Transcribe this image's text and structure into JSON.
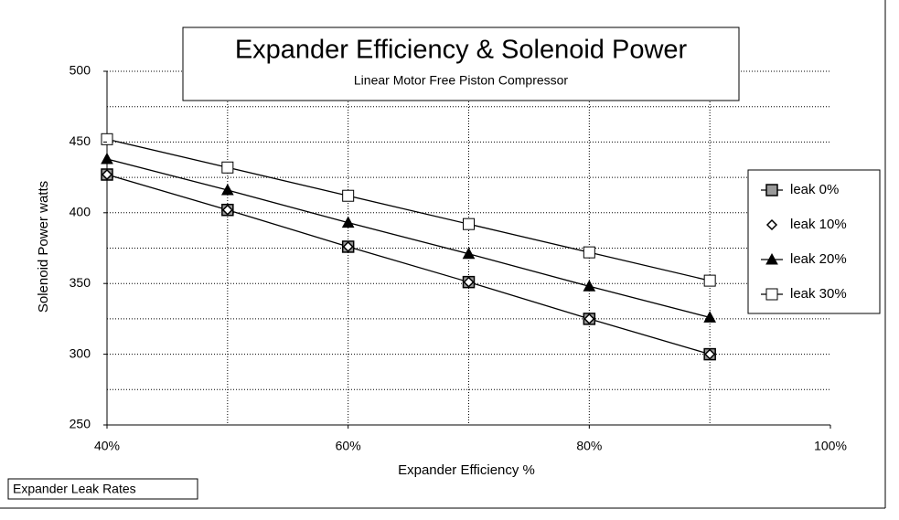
{
  "chart_data": {
    "type": "line",
    "title": "Expander Efficiency & Solenoid Power",
    "subtitle": "Linear Motor Free Piston Compressor",
    "xlabel": "Expander Efficiency %",
    "ylabel": "Solenoid Power watts",
    "annotation": "Expander Leak Rates",
    "x": [
      40,
      50,
      60,
      70,
      80,
      90
    ],
    "xlim": [
      40,
      100
    ],
    "xticks": [
      {
        "value": 40,
        "label": "40%"
      },
      {
        "value": 60,
        "label": "60%"
      },
      {
        "value": 80,
        "label": "80%"
      },
      {
        "value": 100,
        "label": "100%"
      }
    ],
    "xgrid": [
      50,
      60,
      70,
      80,
      90
    ],
    "ylim": [
      250,
      500
    ],
    "yticks": [
      250,
      300,
      350,
      400,
      450,
      500
    ],
    "ygrid": [
      275,
      300,
      325,
      350,
      375,
      400,
      425,
      450,
      475,
      500
    ],
    "grid": true,
    "legend": "right",
    "series": [
      {
        "name": "leak 0%",
        "color": "#000000",
        "marker": "square-filled",
        "line": true,
        "values": [
          427,
          402,
          376,
          351,
          325,
          300
        ]
      },
      {
        "name": "leak 10%",
        "color": "#000000",
        "marker": "diamond",
        "line": false,
        "values": [
          427,
          402,
          376,
          351,
          325,
          300
        ]
      },
      {
        "name": "leak 20%",
        "color": "#000000",
        "marker": "triangle",
        "line": true,
        "values": [
          438,
          416,
          393,
          371,
          348,
          326
        ]
      },
      {
        "name": "leak 30%",
        "color": "#000000",
        "marker": "square",
        "line": true,
        "values": [
          452,
          432,
          412,
          392,
          372,
          352
        ]
      }
    ]
  }
}
